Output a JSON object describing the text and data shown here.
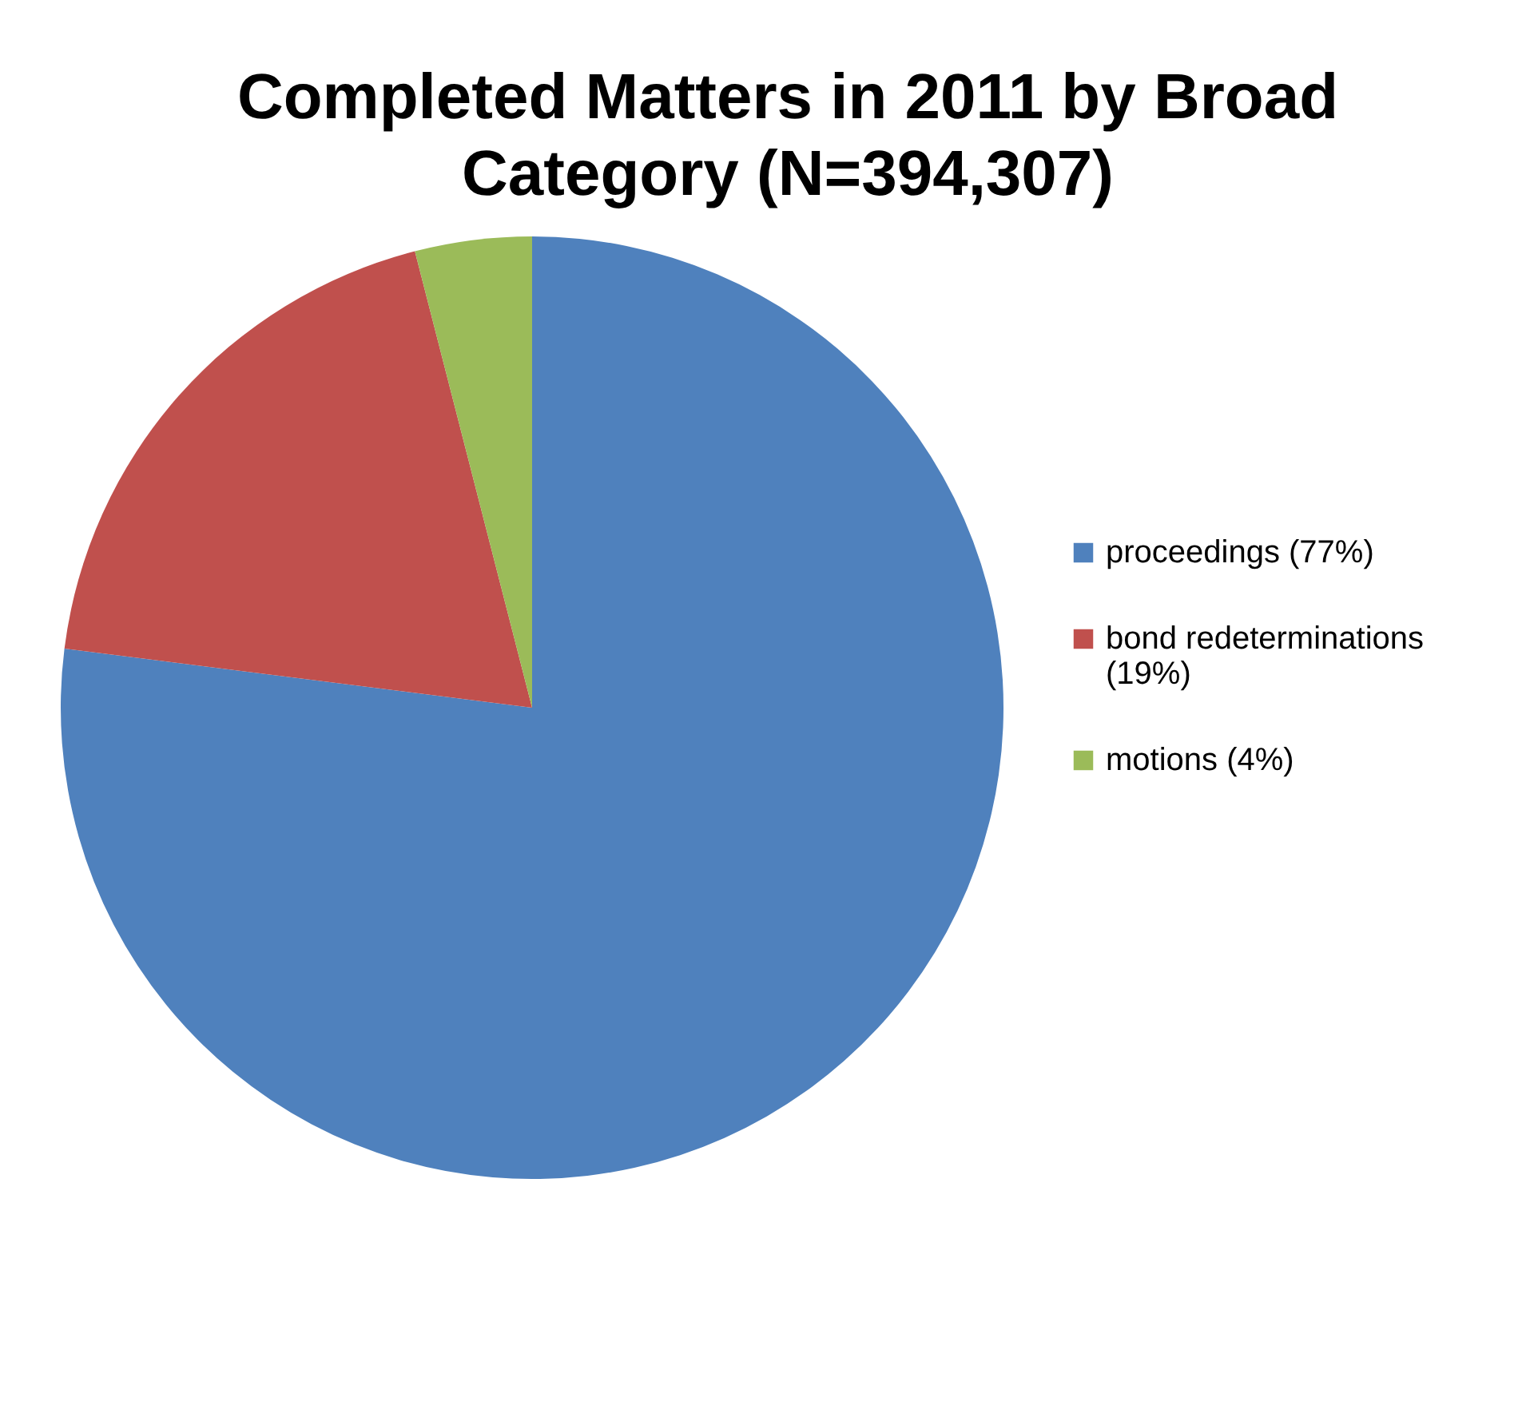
{
  "chart_data": {
    "type": "pie",
    "title": "Completed Matters in 2011 by Broad Category (N=394,307)",
    "categories": [
      "proceedings (77%)",
      "bond redeterminations (19%)",
      "motions (4%)"
    ],
    "values": [
      77,
      19,
      4
    ],
    "colors": [
      "#4f81bd",
      "#c0504d",
      "#9bbb59"
    ],
    "legend": "right"
  }
}
